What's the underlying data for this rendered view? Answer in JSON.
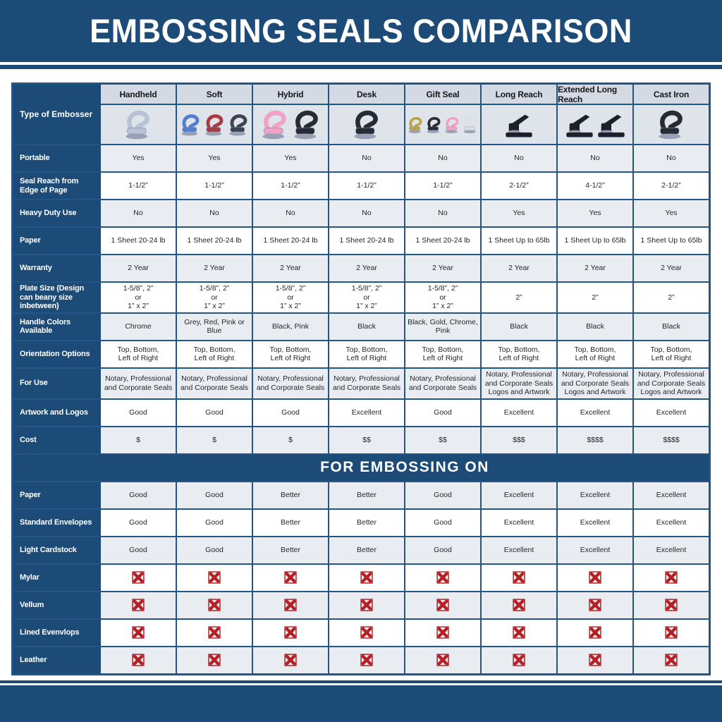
{
  "page_title": "EMBOSSING SEALS COMPARISON",
  "colors": {
    "band_blue": "#1c4b77",
    "border_blue": "#235586",
    "row_stripe_gray": "#e9edf2",
    "header_gray": "#d4dae3",
    "images_row_bg": "#dfe4eb",
    "cross_red": "#b32025"
  },
  "table": {
    "corner_label": "Type of Embosser",
    "columns": [
      {
        "label": "Handheld",
        "image": "handheld-embosser-photo",
        "image_style": "hand",
        "image_colors": [
          "#b9c3d8"
        ]
      },
      {
        "label": "Soft",
        "image": "soft-embosser-photo",
        "image_style": "hand",
        "image_colors": [
          "#4f7fd0",
          "#a83a44",
          "#3c4454"
        ]
      },
      {
        "label": "Hybrid",
        "image": "hybrid-embosser-photo",
        "image_style": "hand",
        "image_colors": [
          "#f0a3c8",
          "#262b35"
        ]
      },
      {
        "label": "Desk",
        "image": "desk-embosser-photo",
        "image_style": "hand",
        "image_colors": [
          "#262b35"
        ]
      },
      {
        "label": "Gift Seal",
        "image": "gift-seal-embosser-photo",
        "image_style": "hand",
        "image_colors": [
          "#bfa24e",
          "#262b35",
          "#f0a3c8",
          "#dde0ea"
        ]
      },
      {
        "label": "Long Reach",
        "image": "long-reach-embosser-photo",
        "image_style": "press",
        "image_colors": [
          "#1c202a"
        ]
      },
      {
        "label": "Extended Long Reach",
        "image": "extended-long-reach-embosser-photo",
        "image_style": "press",
        "image_colors": [
          "#1c202a",
          "#1c202a"
        ]
      },
      {
        "label": "Cast Iron",
        "image": "cast-iron-embosser-photo",
        "image_style": "hand",
        "image_colors": [
          "#262b35"
        ]
      }
    ],
    "spec_rows": [
      {
        "label": "Portable",
        "values": [
          "Yes",
          "Yes",
          "Yes",
          "No",
          "No",
          "No",
          "No",
          "No"
        ]
      },
      {
        "label": "Seal Reach from Edge of Page",
        "values": [
          "1-1/2”",
          "1-1/2”",
          "1-1/2”",
          "1-1/2”",
          "1-1/2”",
          "2-1/2”",
          "4-1/2”",
          "2-1/2”"
        ]
      },
      {
        "label": "Heavy Duty Use",
        "values": [
          "No",
          "No",
          "No",
          "No",
          "No",
          "Yes",
          "Yes",
          "Yes"
        ]
      },
      {
        "label": "Paper",
        "values": [
          "1 Sheet 20-24 lb",
          "1 Sheet 20-24 lb",
          "1 Sheet 20-24 lb",
          "1 Sheet 20-24 lb",
          "1 Sheet 20-24 lb",
          "1 Sheet Up to 65lb",
          "1 Sheet Up to 65lb",
          "1 Sheet Up to 65lb"
        ]
      },
      {
        "label": "Warranty",
        "values": [
          "2 Year",
          "2 Year",
          "2 Year",
          "2 Year",
          "2 Year",
          "2 Year",
          "2 Year",
          "2 Year"
        ]
      },
      {
        "label": "Plate Size (Design can beany size inbetween)",
        "values": [
          "1-5/8”, 2”\nor\n1” x 2”",
          "1-5/8”, 2”\nor\n1” x 2”",
          "1-5/8”, 2”\nor\n1” x 2”",
          "1-5/8”, 2”\nor\n1” x 2”",
          "1-5/8”, 2”\nor\n1” x 2”",
          "2”",
          "2”",
          "2”"
        ]
      },
      {
        "label": "Handle Colors Available",
        "values": [
          "Chrome",
          "Grey, Red, Pink or Blue",
          "Black, Pink",
          "Black",
          "Black, Gold, Chrome, Pink",
          "Black",
          "Black",
          "Black"
        ]
      },
      {
        "label": "Orientation Options",
        "values": [
          "Top, Bottom,\nLeft of Right",
          "Top, Bottom,\nLeft of Right",
          "Top, Bottom,\nLeft of Right",
          "Top, Bottom,\nLeft of Right",
          "Top, Bottom,\nLeft of Right",
          "Top, Bottom,\nLeft of Right",
          "Top, Bottom,\nLeft of Right",
          "Top, Bottom,\nLeft of Right"
        ]
      },
      {
        "label": "For Use",
        "values": [
          "Notary, Professional\nand Corporate Seals",
          "Notary, Professional\nand Corporate Seals",
          "Notary, Professional\nand Corporate Seals",
          "Notary, Professional\nand Corporate Seals",
          "Notary, Professional\nand Corporate Seals",
          "Notary, Professional\nand Corporate Seals\nLogos and Artwork",
          "Notary, Professional\nand Corporate Seals\nLogos and Artwork",
          "Notary, Professional\nand Corporate Seals\nLogos and Artwork"
        ]
      },
      {
        "label": "Artwork and Logos",
        "values": [
          "Good",
          "Good",
          "Good",
          "Excellent",
          "Good",
          "Excellent",
          "Excellent",
          "Excellent"
        ]
      },
      {
        "label": "Cost",
        "values": [
          "$",
          "$",
          "$",
          "$$",
          "$$",
          "$$$",
          "$$$$",
          "$$$$"
        ]
      }
    ],
    "section_header": "FOR EMBOSSING ON",
    "embossing_rows": [
      {
        "label": "Paper",
        "values": [
          "Good",
          "Good",
          "Better",
          "Better",
          "Good",
          "Excellent",
          "Excellent",
          "Excellent"
        ]
      },
      {
        "label": "Standard Envelopes",
        "values": [
          "Good",
          "Good",
          "Better",
          "Better",
          "Good",
          "Excellent",
          "Excellent",
          "Excellent"
        ]
      },
      {
        "label": "Light Cardstock",
        "values": [
          "Good",
          "Good",
          "Better",
          "Better",
          "Good",
          "Excellent",
          "Excellent",
          "Excellent"
        ]
      },
      {
        "label": "Mylar",
        "icon": "cross-in-box-icon"
      },
      {
        "label": "Vellum",
        "icon": "cross-in-box-icon"
      },
      {
        "label": "Lined Evenvlops",
        "icon": "cross-in-box-icon"
      },
      {
        "label": "Leather",
        "icon": "cross-in-box-icon"
      }
    ]
  }
}
